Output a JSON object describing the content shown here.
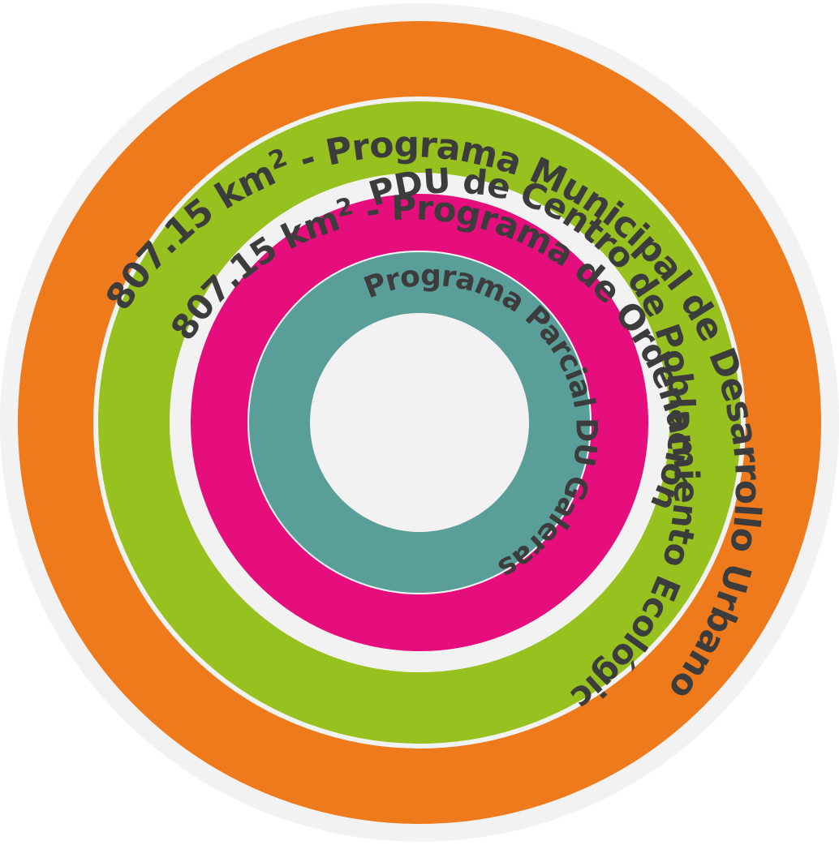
{
  "diagram": {
    "background_color": "#f2f2f2",
    "gap_color": "#f2f2f2",
    "text_color": "#3c3c3c",
    "rings": [
      {
        "id": "pmdu",
        "label_prefix": "807.15 km",
        "label_sup": "2",
        "label_suffix": " - Programa Municipal de Desarrollo Urbano",
        "color": "#ef7a1c"
      },
      {
        "id": "poel",
        "label_prefix": "807.15 km",
        "label_sup": "2",
        "label_suffix": " - Programa de Ordenamiento Ecológico Local",
        "color": "#96c11f"
      },
      {
        "id": "pducp",
        "label_prefix": "",
        "label_sup": "",
        "label_suffix": "PDU de Centro de Población",
        "color": "#e60e7c"
      },
      {
        "id": "ppdu",
        "label_prefix": "",
        "label_sup": "",
        "label_suffix": "Programa Parcial DU Galeras",
        "color": "#5a9e99"
      }
    ]
  }
}
